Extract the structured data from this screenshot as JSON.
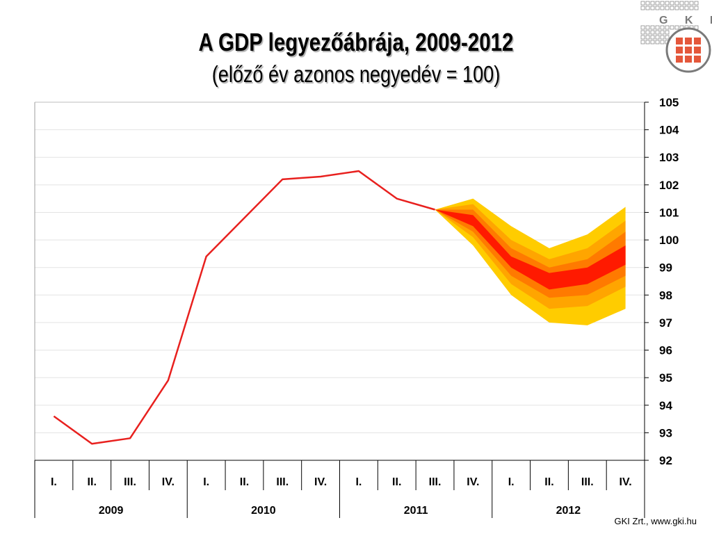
{
  "title": {
    "line1": "A GDP legyezőábrája, 2009-2012",
    "line2": "(előző év azonos negyedév = 100)"
  },
  "footer": "GKI Zrt., www.gki.hu",
  "logo": {
    "text": "G K I",
    "icon": "gki-logo-icon"
  },
  "chart_data": {
    "type": "line",
    "title": "A GDP legyezőábrája, 2009-2012",
    "subtitle": "(előző év azonos negyedév = 100)",
    "xlabel": "",
    "ylabel": "",
    "ylim": [
      92,
      105
    ],
    "yticks": [
      92,
      93,
      94,
      95,
      96,
      97,
      98,
      99,
      100,
      101,
      102,
      103,
      104,
      105
    ],
    "y_axis_position": "right",
    "grid": "horizontal",
    "categories": [
      "I.",
      "II.",
      "III.",
      "IV.",
      "I.",
      "II.",
      "III.",
      "IV.",
      "I.",
      "II.",
      "III.",
      "IV.",
      "I.",
      "II.",
      "III.",
      "IV."
    ],
    "years": [
      "2009",
      "2010",
      "2011",
      "2012"
    ],
    "series": [
      {
        "values": [
          93.6,
          92.6,
          92.8,
          94.9,
          99.4,
          100.8,
          102.2,
          102.3,
          102.5,
          101.5,
          101.1,
          null,
          null,
          null,
          null,
          null
        ],
        "color": "#e8201e"
      }
    ],
    "fan": {
      "start_index": 10,
      "indices": [
        10,
        11,
        12,
        13,
        14,
        15
      ],
      "bands": [
        {
          "color": "#ffcc00",
          "lower": [
            101.1,
            99.8,
            98.0,
            97.0,
            96.9,
            97.5
          ],
          "upper": [
            101.1,
            101.5,
            100.5,
            99.7,
            100.2,
            101.2
          ]
        },
        {
          "color": "#ffa500",
          "lower": [
            101.1,
            100.1,
            98.4,
            97.5,
            97.6,
            98.3
          ],
          "upper": [
            101.1,
            101.3,
            100.0,
            99.3,
            99.7,
            100.7
          ]
        },
        {
          "color": "#ff7a00",
          "lower": [
            101.1,
            100.3,
            98.7,
            97.9,
            98.0,
            98.7
          ],
          "upper": [
            101.1,
            101.1,
            99.7,
            99.0,
            99.3,
            100.3
          ]
        },
        {
          "color": "#ff1a00",
          "lower": [
            101.1,
            100.5,
            99.0,
            98.2,
            98.4,
            99.1
          ],
          "upper": [
            101.1,
            100.9,
            99.4,
            98.8,
            99.0,
            99.8
          ]
        }
      ]
    }
  }
}
